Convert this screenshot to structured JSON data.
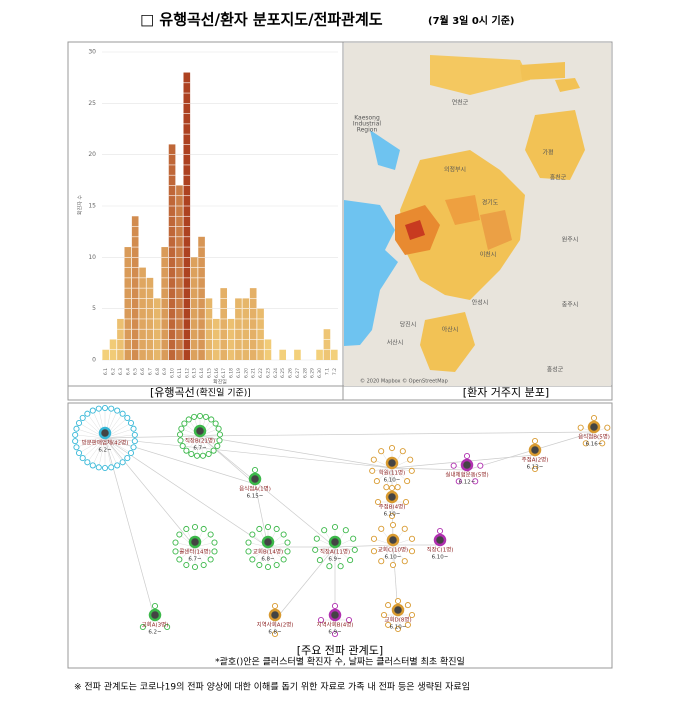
{
  "title": "□ 유행곡선/환자 분포지도/전파관계도",
  "title_note": "(7월 3일 0시 기준)",
  "chart_data": {
    "type": "bar",
    "y_label": "확진자 수",
    "x_label": "확진일",
    "categories": [
      "6.1",
      "6.2",
      "6.3",
      "6.4",
      "6.5",
      "6.6",
      "6.7",
      "6.8",
      "6.9",
      "6.10",
      "6.11",
      "6.12",
      "6.13",
      "6.14",
      "6.15",
      "6.16",
      "6.17",
      "6.18",
      "6.19",
      "6.20",
      "6.21",
      "6.22",
      "6.23",
      "6.24",
      "6.25",
      "6.26",
      "6.27",
      "6.28",
      "6.29",
      "6.30",
      "7.1",
      "7.2"
    ],
    "values": [
      1,
      2,
      4,
      11,
      14,
      9,
      8,
      6,
      11,
      21,
      17,
      28,
      10,
      12,
      6,
      4,
      7,
      4,
      6,
      6,
      7,
      5,
      2,
      0,
      1,
      0,
      1,
      0,
      0,
      1,
      3,
      1
    ],
    "ylim": [
      0,
      30
    ],
    "yticks": [
      0,
      5,
      10,
      15,
      20,
      25,
      30
    ],
    "grid": true,
    "color_low": "#f6d57e",
    "color_high": "#a8381a"
  },
  "chart_caption": "[유행곡선",
  "chart_caption_note": "(확진일 기준)]",
  "map": {
    "caption": "[환자 거주지 분포]",
    "labels": [
      "Kaesong",
      "Industrial",
      "Region",
      "의정부시",
      "경기도",
      "가평",
      "홍천군",
      "이천시",
      "원주시",
      "안성시",
      "당진시",
      "서산시",
      "아산시",
      "충주시",
      "연천군",
      "홍성군"
    ],
    "credit": "© 2020 Mapbox © OpenStreetMap"
  },
  "network": {
    "caption": "[주요 전파 관계도]",
    "note": "*괄호()안은 클러스터별 확진자 수, 날짜는 클러스터별 최초 확진일",
    "nodes": [
      {
        "label": "방문판매업체(42명)",
        "date": "6.2~",
        "color": "#38b8d8"
      },
      {
        "label": "직장B(21명)",
        "date": "6.7~",
        "color": "#3cb84a"
      },
      {
        "label": "음식점A(1명)",
        "date": "6.15~",
        "color": "#3cb84a"
      },
      {
        "label": "학원(11명)",
        "date": "6.10~",
        "color": "#d89a30"
      },
      {
        "label": "실내체험운동(5명)",
        "date": "6.12~",
        "color": "#b030b0"
      },
      {
        "label": "주점A(2명)",
        "date": "6.13~",
        "color": "#d89a30"
      },
      {
        "label": "음식점B(5명)",
        "date": "6.16~",
        "color": "#d89a30"
      },
      {
        "label": "주점B(4명)",
        "date": "6.10~",
        "color": "#d89a30"
      },
      {
        "label": "콜센터(14명)",
        "date": "6.7~",
        "color": "#3cb84a"
      },
      {
        "label": "교회B(14명)",
        "date": "6.8~",
        "color": "#3cb84a"
      },
      {
        "label": "직장A(11명)",
        "date": "6.9~",
        "color": "#3cb84a"
      },
      {
        "label": "교회C(10명)",
        "date": "6.10~",
        "color": "#d89a30"
      },
      {
        "label": "직장C(1명)",
        "date": "6.10~",
        "color": "#b030b0"
      },
      {
        "label": "교회A(3명)",
        "date": "6.2~",
        "color": "#3cb84a"
      },
      {
        "label": "지역사회A(2명)",
        "date": "6.8~",
        "color": "#d89a30"
      },
      {
        "label": "지역사회B(4명)",
        "date": "6.9~",
        "color": "#b030b0"
      },
      {
        "label": "교회D(8명)",
        "date": "6.10~",
        "color": "#d89a30"
      }
    ]
  },
  "footnote": "※ 전파 관계도는 코로나19의 전파 양상에 대한 이해를 돕기 위한 자료로 가족 내 전파 등은 생략된 자료임"
}
